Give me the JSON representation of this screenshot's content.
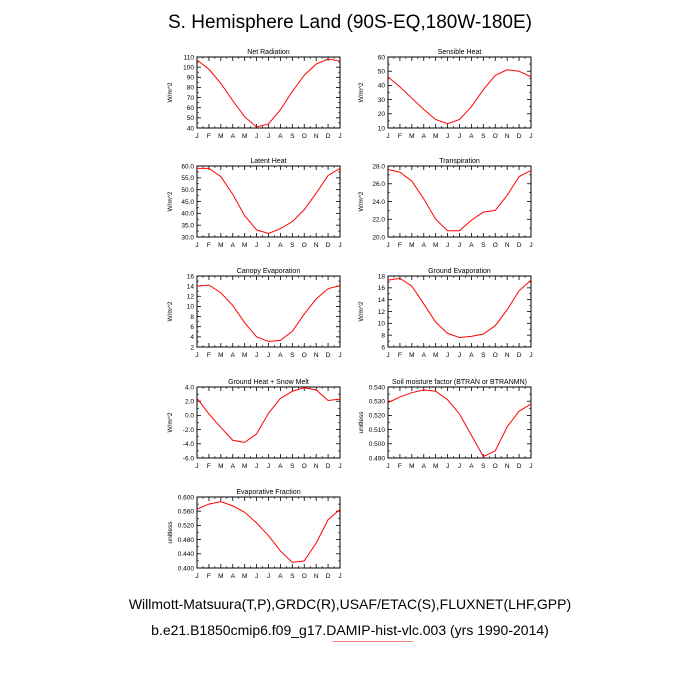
{
  "title": "S. Hemisphere Land (90S-EQ,180W-180E)",
  "captions": {
    "line1": "Willmott-Matsuura(T,P),GRDC(R),USAF/ETAC(S),FLUXNET(LHF,GPP)",
    "line2": "b.e21.B1850cmip6.f09_g17.DAMIP-hist-vlc.003 (yrs 1990-2014)"
  },
  "colors": {
    "line": "#ff0000",
    "axis": "#000000",
    "underline": "#f08080"
  },
  "chart_data": [
    {
      "type": "line",
      "title": "Net Radiation",
      "ylabel": "W/m^2",
      "categories": [
        "J",
        "F",
        "M",
        "A",
        "M",
        "J",
        "J",
        "A",
        "S",
        "O",
        "N",
        "D",
        "J"
      ],
      "ylim": [
        40,
        110
      ],
      "yticks": [
        40,
        50,
        60,
        70,
        80,
        90,
        100,
        110
      ],
      "ytick_labels": [
        "40",
        "50",
        "60",
        "70",
        "80",
        "90",
        "100",
        "110"
      ],
      "values": [
        107,
        98,
        84,
        67,
        51,
        41,
        44,
        58,
        76,
        92,
        103,
        108,
        106
      ]
    },
    {
      "type": "line",
      "title": "Sensible Heat",
      "ylabel": "W/m^2",
      "categories": [
        "J",
        "F",
        "M",
        "A",
        "M",
        "J",
        "J",
        "A",
        "S",
        "O",
        "N",
        "D",
        "J"
      ],
      "ylim": [
        10,
        60
      ],
      "yticks": [
        10,
        20,
        30,
        40,
        50,
        60
      ],
      "ytick_labels": [
        "10",
        "20",
        "30",
        "40",
        "50",
        "60"
      ],
      "values": [
        46,
        39,
        31,
        23,
        16,
        13,
        16,
        25,
        37,
        47,
        51,
        50,
        46
      ]
    },
    {
      "type": "line",
      "title": "Latent Heat",
      "ylabel": "W/m^2",
      "categories": [
        "J",
        "F",
        "M",
        "A",
        "M",
        "J",
        "J",
        "A",
        "S",
        "O",
        "N",
        "D",
        "J"
      ],
      "ylim": [
        30,
        60
      ],
      "yticks": [
        30,
        35,
        40,
        45,
        50,
        55,
        60
      ],
      "ytick_labels": [
        "30.0",
        "35.0",
        "40.0",
        "45.0",
        "50.0",
        "55.0",
        "60.0"
      ],
      "values": [
        59,
        59,
        55.5,
        48,
        39,
        33,
        31.5,
        33.5,
        36.5,
        41.5,
        48.5,
        56,
        59
      ]
    },
    {
      "type": "line",
      "title": "Transpiration",
      "ylabel": "W/m^2",
      "categories": [
        "J",
        "F",
        "M",
        "A",
        "M",
        "J",
        "J",
        "A",
        "S",
        "O",
        "N",
        "D",
        "J"
      ],
      "ylim": [
        20,
        28
      ],
      "yticks": [
        20,
        22,
        24,
        26,
        28
      ],
      "ytick_labels": [
        "20.0",
        "22.0",
        "24.0",
        "26.0",
        "28.0"
      ],
      "values": [
        27.6,
        27.3,
        26.3,
        24.3,
        22,
        20.7,
        20.7,
        21.9,
        22.8,
        23,
        24.7,
        26.8,
        27.5
      ]
    },
    {
      "type": "line",
      "title": "Canopy Evaporation",
      "ylabel": "W/m^2",
      "categories": [
        "J",
        "F",
        "M",
        "A",
        "M",
        "J",
        "J",
        "A",
        "S",
        "O",
        "N",
        "D",
        "J"
      ],
      "ylim": [
        2,
        16
      ],
      "yticks": [
        2,
        4,
        6,
        8,
        10,
        12,
        14,
        16
      ],
      "ytick_labels": [
        "2",
        "4",
        "6",
        "8",
        "10",
        "12",
        "14",
        "16"
      ],
      "values": [
        14,
        14.2,
        12.7,
        10.2,
        6.8,
        4,
        3.1,
        3.3,
        5.1,
        8.5,
        11.5,
        13.5,
        14.1
      ]
    },
    {
      "type": "line",
      "title": "Ground Evaporation",
      "ylabel": "W/m^2",
      "categories": [
        "J",
        "F",
        "M",
        "A",
        "M",
        "J",
        "J",
        "A",
        "S",
        "O",
        "N",
        "D",
        "J"
      ],
      "ylim": [
        6,
        18
      ],
      "yticks": [
        6,
        8,
        10,
        12,
        14,
        16,
        18
      ],
      "ytick_labels": [
        "6",
        "8",
        "10",
        "12",
        "14",
        "16",
        "18"
      ],
      "values": [
        17.3,
        17.6,
        16.3,
        13.3,
        10.2,
        8.3,
        7.6,
        7.8,
        8.2,
        9.6,
        12.3,
        15.5,
        17.3
      ]
    },
    {
      "type": "line",
      "title": "Ground Heat + Snow Melt",
      "ylabel": "W/m^2",
      "categories": [
        "J",
        "F",
        "M",
        "A",
        "M",
        "J",
        "J",
        "A",
        "S",
        "O",
        "N",
        "D",
        "J"
      ],
      "ylim": [
        -6,
        4
      ],
      "yticks": [
        -6,
        -4,
        -2,
        0,
        2,
        4
      ],
      "ytick_labels": [
        "-6.0",
        "-4.0",
        "-2.0",
        "0.0",
        "2.0",
        "4.0"
      ],
      "values": [
        2.4,
        0.2,
        -1.7,
        -3.5,
        -3.8,
        -2.6,
        0.3,
        2.4,
        3.4,
        3.9,
        3.6,
        2.1,
        2.3
      ]
    },
    {
      "type": "line",
      "title": "Soil moisture factor (BTRAN or BTRANMN)",
      "ylabel": "unitless",
      "categories": [
        "J",
        "F",
        "M",
        "A",
        "M",
        "J",
        "J",
        "A",
        "S",
        "O",
        "N",
        "D",
        "J"
      ],
      "ylim": [
        0.49,
        0.54
      ],
      "yticks": [
        0.49,
        0.5,
        0.51,
        0.52,
        0.53,
        0.54
      ],
      "ytick_labels": [
        "0.490",
        "0.500",
        "0.510",
        "0.520",
        "0.530",
        "0.540"
      ],
      "values": [
        0.529,
        0.533,
        0.536,
        0.538,
        0.537,
        0.531,
        0.521,
        0.506,
        0.491,
        0.495,
        0.512,
        0.523,
        0.528
      ]
    },
    {
      "type": "line",
      "title": "Evaporative Fraction",
      "ylabel": "unitless",
      "categories": [
        "J",
        "F",
        "M",
        "A",
        "M",
        "J",
        "J",
        "A",
        "S",
        "O",
        "N",
        "D",
        "J"
      ],
      "ylim": [
        0.4,
        0.6
      ],
      "yticks": [
        0.4,
        0.44,
        0.48,
        0.52,
        0.56,
        0.6
      ],
      "ytick_labels": [
        "0.400",
        "0.440",
        "0.480",
        "0.520",
        "0.560",
        "0.600"
      ],
      "values": [
        0.566,
        0.58,
        0.587,
        0.575,
        0.557,
        0.527,
        0.491,
        0.448,
        0.416,
        0.42,
        0.47,
        0.536,
        0.565
      ]
    }
  ]
}
